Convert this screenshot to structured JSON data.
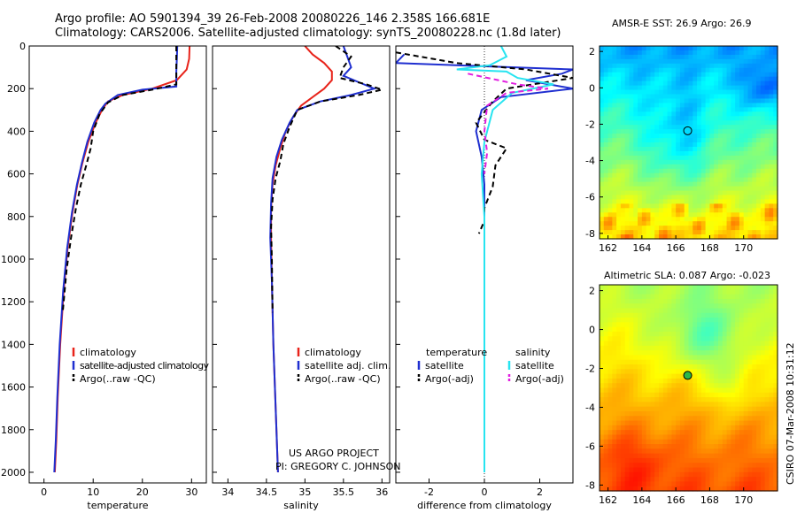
{
  "header": {
    "line1": "Argo profile: AO 5901394_39 26-Feb-2008 20080226_146 2.358S 166.681E",
    "line2": "Climatology: CARS2006. Satellite-adjusted climatology: synTS_20080228.nc (1.8d later)"
  },
  "side_label": "CSIRO 07-Mar-2008 10:31:12",
  "credits": [
    "US ARGO PROJECT",
    "PI: GREGORY C. JOHNSON"
  ],
  "colors": {
    "red": "#e8231a",
    "blue": "#1f2fd0",
    "black": "#000000",
    "cyan": "#27e4f0",
    "magenta": "#e21fe0"
  },
  "chart_data": [
    {
      "type": "line",
      "xlabel": "temperature",
      "xlim": [
        -3,
        33
      ],
      "ylim": [
        2050,
        0
      ],
      "xticks": [
        0,
        10,
        20,
        30
      ],
      "yticks": [
        0,
        200,
        400,
        600,
        800,
        1000,
        1200,
        1400,
        1600,
        1800,
        2000
      ],
      "legend": [
        "climatology",
        "satellite-adjusted climatology",
        "Argo(..raw -QC)"
      ],
      "series": [
        {
          "name": "climatology",
          "color": "red",
          "points": [
            [
              29.6,
              0
            ],
            [
              29.5,
              60
            ],
            [
              29.0,
              110
            ],
            [
              27.0,
              160
            ],
            [
              22.0,
              200
            ],
            [
              16.0,
              230
            ],
            [
              13.0,
              260
            ],
            [
              11.8,
              300
            ],
            [
              10.5,
              360
            ],
            [
              9.0,
              450
            ],
            [
              7.8,
              550
            ],
            [
              6.8,
              650
            ],
            [
              5.8,
              780
            ],
            [
              4.8,
              950
            ],
            [
              4.0,
              1150
            ],
            [
              3.3,
              1400
            ],
            [
              2.8,
              1650
            ],
            [
              2.5,
              1850
            ],
            [
              2.2,
              2000
            ]
          ]
        },
        {
          "name": "satellite-adjusted climatology",
          "color": "blue",
          "points": [
            [
              27.1,
              0
            ],
            [
              27.0,
              60
            ],
            [
              26.9,
              120
            ],
            [
              26.9,
              190
            ],
            [
              20.0,
              205
            ],
            [
              15.0,
              230
            ],
            [
              12.5,
              270
            ],
            [
              11.5,
              300
            ],
            [
              10.2,
              360
            ],
            [
              8.8,
              450
            ],
            [
              7.7,
              550
            ],
            [
              6.7,
              650
            ],
            [
              5.7,
              780
            ],
            [
              4.7,
              950
            ],
            [
              3.9,
              1150
            ],
            [
              3.2,
              1400
            ],
            [
              2.7,
              1650
            ],
            [
              2.4,
              1850
            ],
            [
              2.1,
              2000
            ]
          ]
        },
        {
          "name": "Argo(..raw -QC)",
          "color": "black",
          "dash": true,
          "points": [
            [
              26.9,
              0
            ],
            [
              26.9,
              180
            ],
            [
              22.0,
              205
            ],
            [
              16.0,
              230
            ],
            [
              13.0,
              265
            ],
            [
              11.3,
              320
            ],
            [
              10.0,
              400
            ],
            [
              9.5,
              480
            ],
            [
              8.6,
              560
            ],
            [
              7.5,
              650
            ],
            [
              6.5,
              760
            ],
            [
              5.5,
              900
            ],
            [
              4.6,
              1050
            ],
            [
              3.8,
              1250
            ]
          ]
        }
      ]
    },
    {
      "type": "line",
      "xlabel": "salinity",
      "xlim": [
        33.8,
        36.1
      ],
      "ylim": [
        2050,
        0
      ],
      "xticks": [
        34,
        34.5,
        35,
        35.5,
        36
      ],
      "legend": [
        "climatology",
        "satellite adj. clim.",
        "Argo(..raw -QC)"
      ],
      "series": [
        {
          "name": "climatology",
          "color": "red",
          "points": [
            [
              35.0,
              0
            ],
            [
              35.1,
              40
            ],
            [
              35.25,
              80
            ],
            [
              35.35,
              120
            ],
            [
              35.35,
              160
            ],
            [
              35.25,
              200
            ],
            [
              35.1,
              240
            ],
            [
              34.95,
              280
            ],
            [
              34.85,
              330
            ],
            [
              34.75,
              400
            ],
            [
              34.68,
              480
            ],
            [
              34.62,
              560
            ],
            [
              34.58,
              650
            ],
            [
              34.56,
              760
            ],
            [
              34.56,
              900
            ],
            [
              34.57,
              1100
            ],
            [
              34.59,
              1400
            ],
            [
              34.62,
              1700
            ],
            [
              34.65,
              2000
            ]
          ]
        },
        {
          "name": "satellite adj. clim.",
          "color": "blue",
          "points": [
            [
              35.5,
              0
            ],
            [
              35.55,
              50
            ],
            [
              35.6,
              100
            ],
            [
              35.5,
              140
            ],
            [
              35.7,
              170
            ],
            [
              35.9,
              200
            ],
            [
              35.6,
              230
            ],
            [
              35.2,
              260
            ],
            [
              34.9,
              300
            ],
            [
              34.8,
              360
            ],
            [
              34.7,
              440
            ],
            [
              34.63,
              520
            ],
            [
              34.58,
              620
            ],
            [
              34.56,
              740
            ],
            [
              34.55,
              900
            ],
            [
              34.57,
              1100
            ],
            [
              34.59,
              1400
            ],
            [
              34.62,
              1700
            ],
            [
              34.65,
              2000
            ]
          ]
        },
        {
          "name": "Argo(..raw -QC)",
          "color": "black",
          "dash": true,
          "points": [
            [
              35.4,
              0
            ],
            [
              35.6,
              50
            ],
            [
              35.5,
              100
            ],
            [
              35.45,
              150
            ],
            [
              35.8,
              180
            ],
            [
              36.0,
              205
            ],
            [
              35.7,
              230
            ],
            [
              35.2,
              260
            ],
            [
              34.9,
              300
            ],
            [
              34.8,
              380
            ],
            [
              34.72,
              460
            ],
            [
              34.68,
              540
            ],
            [
              34.62,
              620
            ],
            [
              34.58,
              720
            ],
            [
              34.56,
              850
            ],
            [
              34.57,
              1000
            ],
            [
              34.58,
              1250
            ]
          ]
        }
      ]
    },
    {
      "type": "line",
      "xlabel": "difference from climatology",
      "xlim": [
        -3.2,
        3.2
      ],
      "ylim": [
        2050,
        0
      ],
      "xticks": [
        -2,
        0,
        2
      ],
      "legend_groups": [
        {
          "title": "temperature",
          "entries": [
            "satellite",
            "Argo(-adj)"
          ]
        },
        {
          "title": "salinity",
          "entries": [
            "satellite",
            "Argo(-adj)"
          ]
        }
      ],
      "series": [
        {
          "name": "satellite",
          "group": "temperature",
          "color": "blue",
          "points": [
            [
              -2.9,
              40
            ],
            [
              -3.2,
              80
            ],
            [
              3.2,
              110
            ],
            [
              2.8,
              130
            ],
            [
              1.5,
              160
            ],
            [
              3.2,
              200
            ],
            [
              0.6,
              240
            ],
            [
              -0.1,
              300
            ],
            [
              -0.3,
              400
            ],
            [
              -0.1,
              520
            ],
            [
              0.0,
              650
            ],
            [
              0.0,
              900
            ],
            [
              0.0,
              1300
            ],
            [
              0.0,
              2000
            ]
          ]
        },
        {
          "name": "Argo(-adj)",
          "group": "temperature",
          "color": "black",
          "dash": true,
          "points": [
            [
              -3.2,
              30
            ],
            [
              -1.0,
              80
            ],
            [
              1.5,
              110
            ],
            [
              3.2,
              150
            ],
            [
              0.8,
              200
            ],
            [
              0.3,
              260
            ],
            [
              -0.3,
              360
            ],
            [
              0.0,
              440
            ],
            [
              0.8,
              480
            ],
            [
              0.4,
              560
            ],
            [
              0.3,
              660
            ],
            [
              0.0,
              760
            ],
            [
              0.0,
              820
            ],
            [
              -0.2,
              880
            ]
          ]
        },
        {
          "name": "satellite",
          "group": "salinity",
          "color": "cyan",
          "points": [
            [
              0.6,
              0
            ],
            [
              0.8,
              50
            ],
            [
              0.2,
              90
            ],
            [
              -1.0,
              110
            ],
            [
              0.8,
              120
            ],
            [
              1.2,
              150
            ],
            [
              2.5,
              180
            ],
            [
              1.0,
              220
            ],
            [
              0.3,
              300
            ],
            [
              0.0,
              450
            ],
            [
              -0.1,
              600
            ],
            [
              0.0,
              800
            ],
            [
              0.0,
              1200
            ],
            [
              0.0,
              2000
            ]
          ]
        },
        {
          "name": "Argo(-adj)",
          "group": "salinity",
          "color": "magenta",
          "dash": true,
          "points": [
            [
              -0.6,
              130
            ],
            [
              0.5,
              160
            ],
            [
              1.2,
              180
            ],
            [
              2.3,
              200
            ],
            [
              0.8,
              220
            ],
            [
              0.1,
              280
            ],
            [
              0.0,
              400
            ],
            [
              0.1,
              500
            ],
            [
              0.0,
              600
            ]
          ]
        }
      ]
    }
  ],
  "maps": [
    {
      "title": "AMSR-E SST: 26.9 Argo: 26.9",
      "xticks": [
        162,
        164,
        166,
        168,
        170
      ],
      "yticks": [
        2,
        0,
        -2,
        -4,
        -6,
        -8
      ],
      "lon": [
        161.5,
        172.0
      ],
      "lat": [
        -8.3,
        2.3
      ],
      "profile_lon": 166.7,
      "profile_lat": -2.36
    },
    {
      "title": "Altimetric SLA: 0.087 Argo: -0.023",
      "xticks": [
        162,
        164,
        166,
        168,
        170
      ],
      "yticks": [
        2,
        0,
        -2,
        -4,
        -6,
        -8
      ],
      "lon": [
        161.5,
        172.0
      ],
      "lat": [
        -8.3,
        2.3
      ],
      "profile_lon": 166.7,
      "profile_lat": -2.36
    }
  ]
}
